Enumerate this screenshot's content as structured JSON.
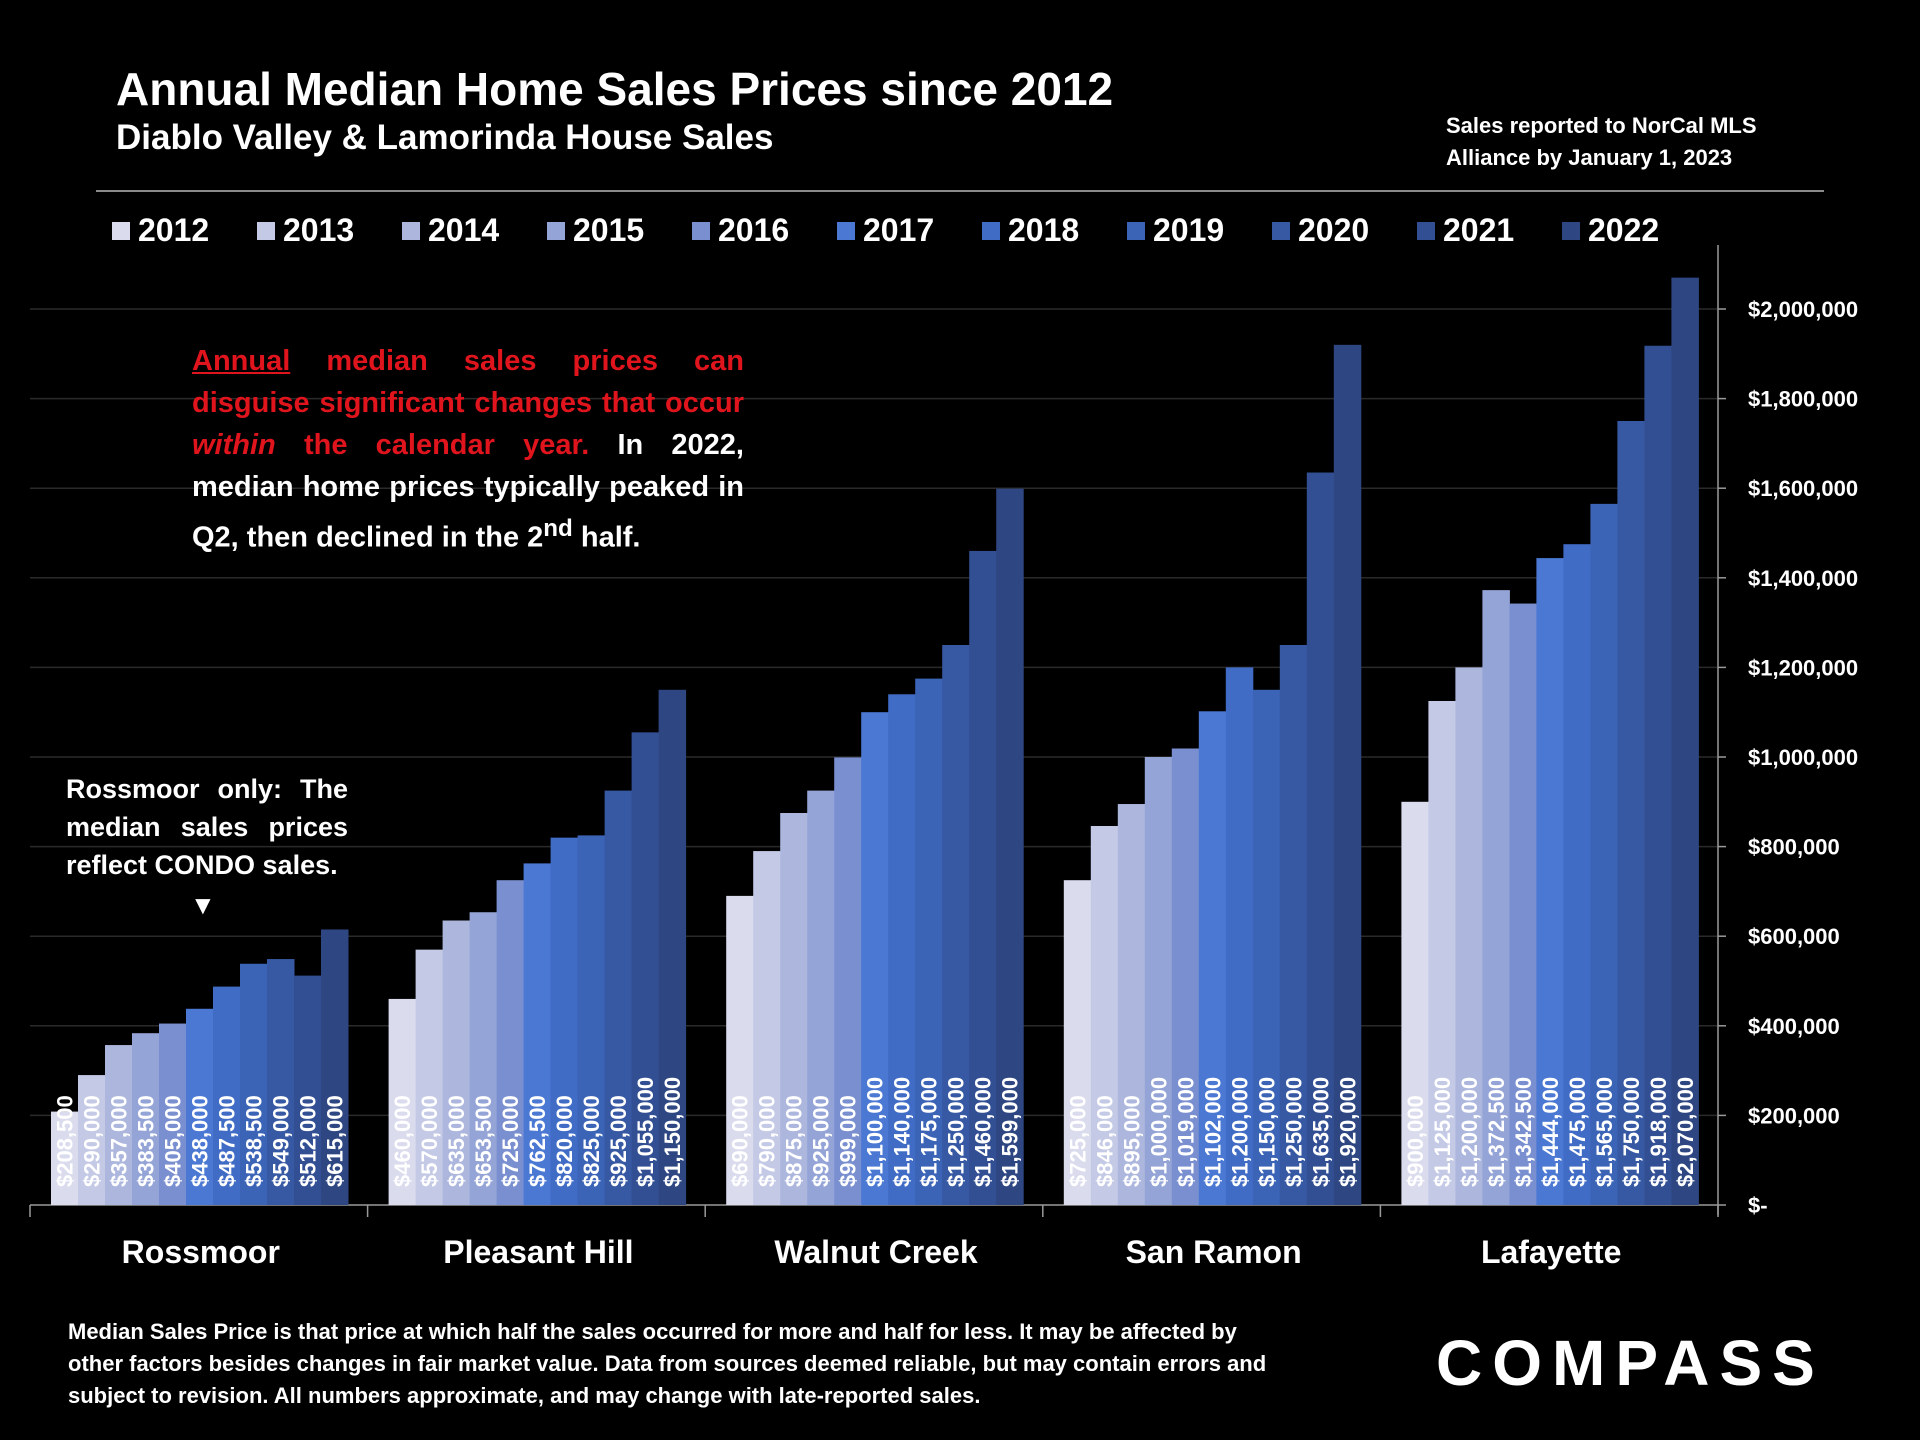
{
  "header": {
    "title": "Annual Median Home Sales Prices since 2012",
    "subtitle": "Diablo Valley & Lamorinda House Sales",
    "source_line1": "Sales reported to NorCal MLS",
    "source_line2": "Alliance by January 1, 2023"
  },
  "callout": {
    "underlined": "Annual",
    "red_part1": " median sales prices can disguise significant changes that occur ",
    "red_italic": "within",
    "red_part2": " the calendar year.",
    "white_part": " In 2022, median home prices typically peaked in Q2, then declined in the 2",
    "superscript": "nd",
    "white_end": " half."
  },
  "note": {
    "text": "Rossmoor only: The median sales prices reflect CONDO sales.",
    "arrow": "▼"
  },
  "footnote": "Median Sales Price is that price at which half the sales occurred for more and half for less. It may be affected by other factors besides changes in fair market value. Data from sources deemed reliable, but may contain errors and subject to revision.  All numbers approximate, and may change with late-reported sales.",
  "logo": "COMPASS",
  "colors": {
    "background": "#000000",
    "year_colors": [
      "#dadcee",
      "#c4c9e5",
      "#adb7de",
      "#94a4d6",
      "#7a8fd0",
      "#4a78d3",
      "#416cc6",
      "#3b63b6",
      "#3759a3",
      "#334f93",
      "#2e4782"
    ],
    "callout_red": "#e0141c",
    "gridline": "#2a2a2a"
  },
  "chart_data": {
    "type": "bar",
    "title": "Annual Median Home Sales Prices since 2012",
    "xlabel": "",
    "ylabel": "",
    "ylim": [
      0,
      2150000
    ],
    "legend_position": "top",
    "grid": true,
    "categories": [
      "Rossmoor",
      "Pleasant Hill",
      "Walnut Creek",
      "San Ramon",
      "Lafayette"
    ],
    "y_ticks": [
      0,
      200000,
      400000,
      600000,
      800000,
      1000000,
      1200000,
      1400000,
      1600000,
      1800000,
      2000000
    ],
    "y_tick_labels": [
      "$-",
      "$200,000",
      "$400,000",
      "$600,000",
      "$800,000",
      "$1,000,000",
      "$1,200,000",
      "$1,400,000",
      "$1,600,000",
      "$1,800,000",
      "$2,000,000"
    ],
    "series": [
      {
        "name": "2012",
        "values": [
          208500,
          460000,
          690000,
          725000,
          900000
        ],
        "labels": [
          "$208,500",
          "$460,000",
          "$690,000",
          "$725,000",
          "$900,000"
        ]
      },
      {
        "name": "2013",
        "values": [
          290000,
          570000,
          790000,
          846000,
          1125000
        ],
        "labels": [
          "$290,000",
          "$570,000",
          "$790,000",
          "$846,000",
          "$1,125,000"
        ]
      },
      {
        "name": "2014",
        "values": [
          357000,
          635000,
          875000,
          895000,
          1200000
        ],
        "labels": [
          "$357,000",
          "$635,000",
          "$875,000",
          "$895,000",
          "$1,200,000"
        ]
      },
      {
        "name": "2015",
        "values": [
          383500,
          653500,
          925000,
          1000000,
          1372500
        ],
        "labels": [
          "$383,500",
          "$653,500",
          "$925,000",
          "$1,000,000",
          "$1,372,500"
        ]
      },
      {
        "name": "2016",
        "values": [
          405000,
          725000,
          999000,
          1019000,
          1342500
        ],
        "labels": [
          "$405,000",
          "$725,000",
          "$999,000",
          "$1,019,000",
          "$1,342,500"
        ]
      },
      {
        "name": "2017",
        "values": [
          438000,
          762500,
          1100000,
          1102000,
          1444000
        ],
        "labels": [
          "$438,000",
          "$762,500",
          "$1,100,000",
          "$1,102,000",
          "$1,444,000"
        ]
      },
      {
        "name": "2018",
        "values": [
          487500,
          820000,
          1140000,
          1200000,
          1475000
        ],
        "labels": [
          "$487,500",
          "$820,000",
          "$1,140,000",
          "$1,200,000",
          "$1,475,000"
        ]
      },
      {
        "name": "2019",
        "values": [
          538500,
          825000,
          1175000,
          1150000,
          1565000
        ],
        "labels": [
          "$538,500",
          "$825,000",
          "$1,175,000",
          "$1,150,000",
          "$1,565,000"
        ]
      },
      {
        "name": "2020",
        "values": [
          549000,
          925000,
          1250000,
          1250000,
          1750000
        ],
        "labels": [
          "$549,000",
          "$925,000",
          "$1,250,000",
          "$1,250,000",
          "$1,750,000"
        ]
      },
      {
        "name": "2021",
        "values": [
          512000,
          1055000,
          1460000,
          1635000,
          1918000
        ],
        "labels": [
          "$512,000",
          "$1,055,000",
          "$1,460,000",
          "$1,635,000",
          "$1,918,000"
        ]
      },
      {
        "name": "2022",
        "values": [
          615000,
          1150000,
          1599000,
          1920000,
          2070000
        ],
        "labels": [
          "$615,000",
          "$1,150,000",
          "$1,599,000",
          "$1,920,000",
          "$2,070,000"
        ]
      }
    ]
  }
}
